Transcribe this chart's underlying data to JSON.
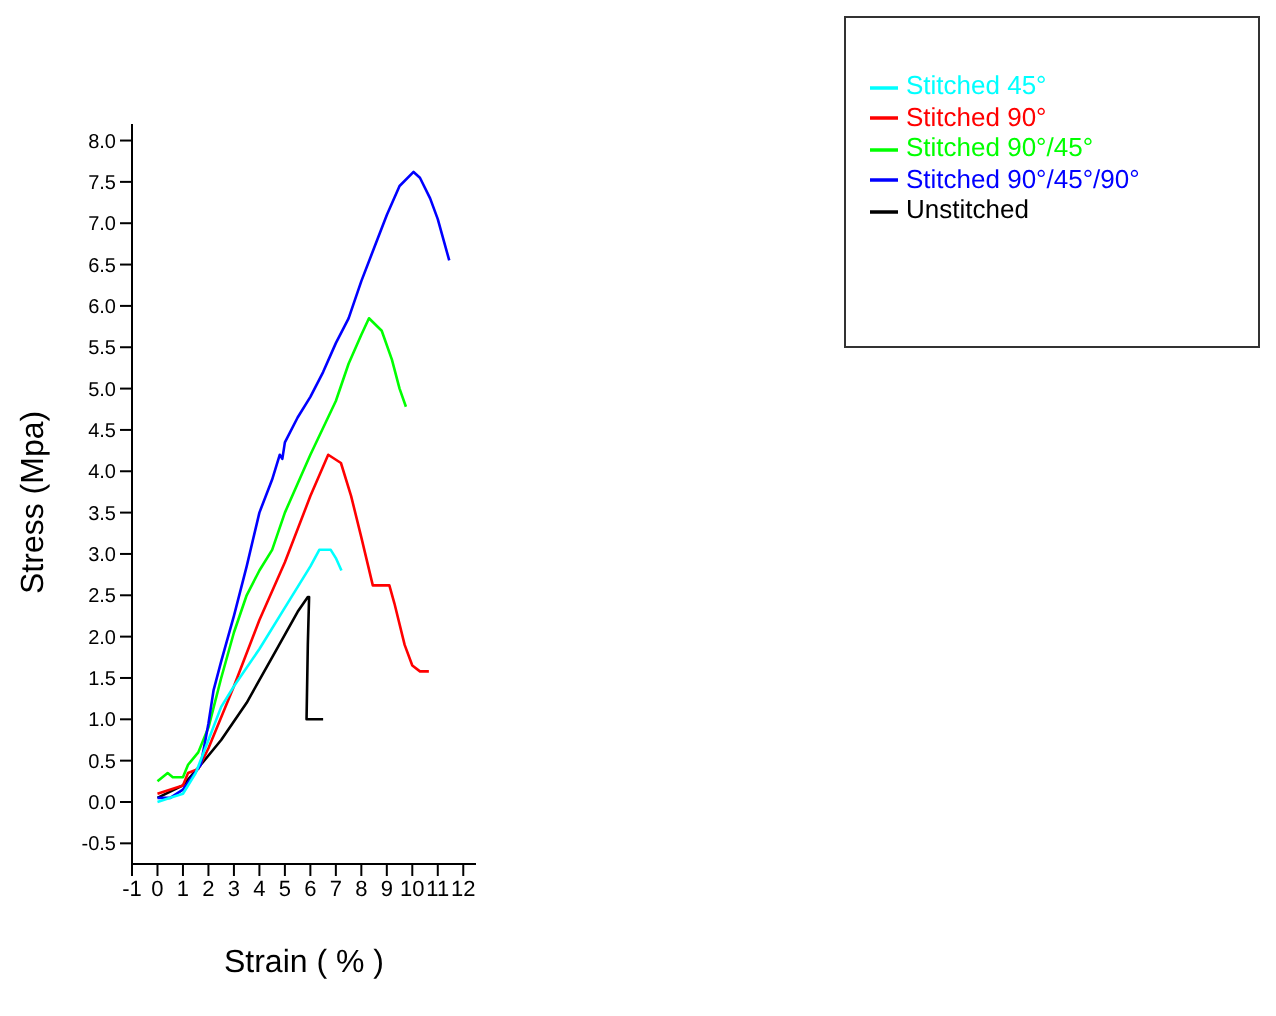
{
  "chart_data": {
    "type": "line",
    "xlabel": "Strain ( % )",
    "ylabel": "Stress (Mpa)",
    "xlim": [
      -1,
      12.5
    ],
    "xticks": [
      -1,
      0,
      1,
      2,
      3,
      4,
      5,
      6,
      7,
      8,
      9,
      10,
      11,
      12
    ],
    "ylim": [
      -0.75,
      8.2
    ],
    "yticks": [
      {
        "value": -0.5,
        "label": "-0.5"
      },
      {
        "value": 0,
        "label": "0.0"
      },
      {
        "value": 0.5,
        "label": "0.5"
      },
      {
        "value": 1,
        "label": "1.0"
      },
      {
        "value": 1.5,
        "label": "1.5"
      },
      {
        "value": 2,
        "label": "2.0"
      },
      {
        "value": 2.5,
        "label": "2.5"
      },
      {
        "value": 3,
        "label": "3.0"
      },
      {
        "value": 3.5,
        "label": "3.5"
      },
      {
        "value": 4,
        "label": "4.0"
      },
      {
        "value": 4.5,
        "label": "4.5"
      },
      {
        "value": 5,
        "label": "5.0"
      },
      {
        "value": 5.5,
        "label": "5.5"
      },
      {
        "value": 6,
        "label": "6.0"
      },
      {
        "value": 6.5,
        "label": "6.5"
      },
      {
        "value": 7,
        "label": "7.0"
      },
      {
        "value": 7.5,
        "label": "7.5"
      },
      {
        "value": 8,
        "label": "8.0"
      }
    ],
    "grid": false,
    "legend": "top right",
    "marker": "none",
    "line_style": "solid",
    "series": [
      {
        "name": "Unstitched",
        "color": "#000000",
        "x": [
          0,
          1,
          1.7,
          2.5,
          3.5,
          4.5,
          5.5,
          5.9,
          5.95,
          5.9,
          5.85,
          6.5
        ],
        "values": [
          0.05,
          0.2,
          0.45,
          0.75,
          1.2,
          1.75,
          2.3,
          2.48,
          2.48,
          1.9,
          1.0,
          1.0
        ]
      },
      {
        "name": "Stitched 90°",
        "color": "#ff0000",
        "x": [
          0,
          1,
          1.2,
          1.6,
          2,
          3,
          4,
          5,
          6,
          6.7,
          7.2,
          7.6,
          8,
          8.45,
          9.1,
          9.3,
          9.7,
          10,
          10.3,
          10.65
        ],
        "values": [
          0.1,
          0.2,
          0.35,
          0.4,
          0.65,
          1.4,
          2.2,
          2.9,
          3.7,
          4.2,
          4.1,
          3.7,
          3.2,
          2.62,
          2.62,
          2.4,
          1.9,
          1.65,
          1.58,
          1.58
        ]
      },
      {
        "name": "Stitched 90°/45°",
        "color": "#00ff00",
        "x": [
          0,
          0.4,
          0.6,
          1,
          1.2,
          1.6,
          2,
          2.5,
          3,
          3.5,
          4,
          4.5,
          5,
          6,
          7,
          7.5,
          8,
          8.3,
          8.8,
          9.2,
          9.5,
          9.75
        ],
        "values": [
          0.25,
          0.35,
          0.3,
          0.3,
          0.45,
          0.6,
          0.9,
          1.5,
          2.05,
          2.5,
          2.8,
          3.05,
          3.5,
          4.2,
          4.85,
          5.3,
          5.65,
          5.85,
          5.7,
          5.35,
          5.0,
          4.78
        ]
      },
      {
        "name": "Stitched 90°/45°/90°",
        "color": "#0000ff",
        "x": [
          0,
          0.5,
          1,
          1.7,
          2,
          2.2,
          2.5,
          3,
          3.5,
          4,
          4.5,
          4.8,
          4.9,
          5,
          5.5,
          6,
          6.5,
          7,
          7.5,
          8,
          8.5,
          9,
          9.5,
          10.05,
          10.3,
          10.7,
          11,
          11.45
        ],
        "values": [
          0.05,
          0.05,
          0.15,
          0.45,
          0.95,
          1.35,
          1.7,
          2.25,
          2.85,
          3.5,
          3.9,
          4.2,
          4.15,
          4.35,
          4.65,
          4.9,
          5.2,
          5.55,
          5.85,
          6.3,
          6.7,
          7.1,
          7.45,
          7.62,
          7.55,
          7.3,
          7.05,
          6.55
        ]
      },
      {
        "name": "Stitched 45°",
        "color": "#00ffff",
        "x": [
          0,
          0.5,
          1,
          1.5,
          2,
          2.5,
          3,
          4,
          5,
          6,
          6.35,
          6.8,
          7,
          7.22
        ],
        "values": [
          0,
          0.05,
          0.1,
          0.35,
          0.75,
          1.15,
          1.4,
          1.85,
          2.35,
          2.85,
          3.05,
          3.05,
          2.95,
          2.8
        ]
      }
    ]
  }
}
